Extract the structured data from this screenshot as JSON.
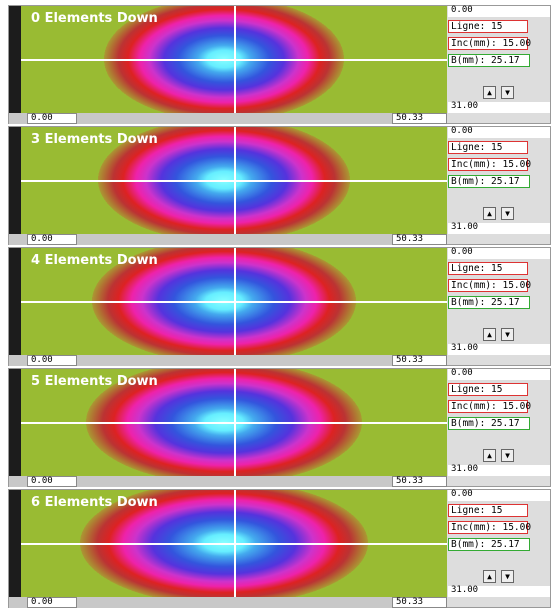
{
  "panels": [
    {
      "title": "0 Elements Down",
      "x_min": "0.00",
      "x_max": "50.33",
      "y_top": "0.00",
      "ligne": "Ligne: 15",
      "inc": "Inc(mm): 15.00",
      "b": "B(mm): 25.17",
      "y_bottom": "31.00"
    },
    {
      "title": "3 Elements Down",
      "x_min": "0.00",
      "x_max": "50.33",
      "y_top": "0.00",
      "ligne": "Ligne: 15",
      "inc": "Inc(mm): 15.00",
      "b": "B(mm): 25.17",
      "y_bottom": "31.00"
    },
    {
      "title": "4 Elements Down",
      "x_min": "0.00",
      "x_max": "50.33",
      "y_top": "0.00",
      "ligne": "Ligne: 15",
      "inc": "Inc(mm): 15.00",
      "b": "B(mm): 25.17",
      "y_bottom": "31.00"
    },
    {
      "title": "5 Elements Down",
      "x_min": "0.00",
      "x_max": "50.33",
      "y_top": "0.00",
      "ligne": "Ligne: 15",
      "inc": "Inc(mm): 15.00",
      "b": "B(mm): 25.17",
      "y_bottom": "31.00"
    },
    {
      "title": "6 Elements Down",
      "x_min": "0.00",
      "x_max": "50.33",
      "y_top": "0.00",
      "ligne": "Ligne: 15",
      "inc": "Inc(mm): 15.00",
      "b": "B(mm): 25.17",
      "y_bottom": "31.00"
    }
  ]
}
